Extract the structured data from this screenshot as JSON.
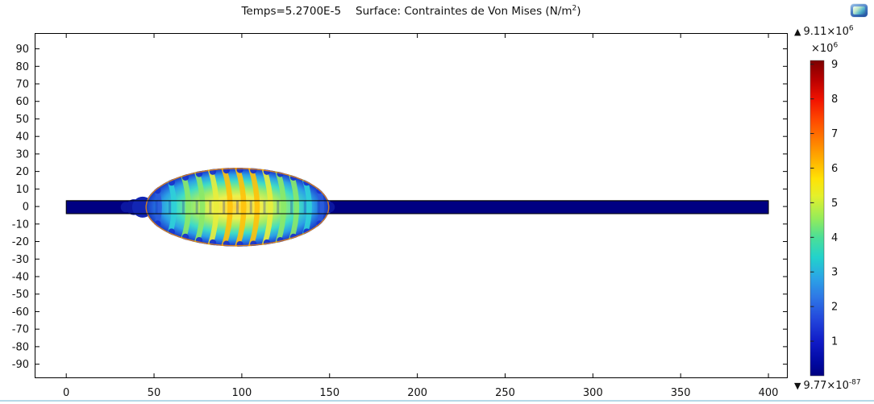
{
  "header": {
    "title": {
      "time": "Temps=5.2700E-5",
      "surface_prefix": "Surface: Contraintes de Von Mises (N/m",
      "surface_exponent": "2",
      "surface_suffix": ")"
    }
  },
  "icons": {
    "top_right": "plot-window-icon"
  },
  "chart_data": {
    "type": "heatmap",
    "title": "Temps=5.2700E-5   Surface: Contraintes de Von Mises (N/m²)",
    "xlabel": "",
    "ylabel": "",
    "xlim": [
      -18,
      411
    ],
    "ylim": [
      -98,
      99
    ],
    "x_ticks": [
      0,
      50,
      100,
      150,
      200,
      250,
      300,
      350,
      400
    ],
    "y_ticks": [
      90,
      80,
      70,
      60,
      50,
      40,
      30,
      20,
      10,
      0,
      -10,
      -20,
      -30,
      -40,
      -50,
      -60,
      -70,
      -80,
      -90
    ],
    "grid": false,
    "colorbar": {
      "position": "right",
      "max_marker": "▲",
      "min_marker": "▼",
      "max_prefix": "9.11×10",
      "max_exponent": "6",
      "multiplier_prefix": "×10",
      "multiplier_exponent": "6",
      "min_prefix": "9.77×10",
      "min_exponent": "-87",
      "vmax": 9.11,
      "ticks": [
        9,
        8,
        7,
        6,
        5,
        4,
        3,
        2,
        1
      ],
      "gradient": [
        [
          "0",
          "#7A0000"
        ],
        [
          "0.015",
          "#8C0000"
        ],
        [
          "0.06",
          "#B80000"
        ],
        [
          "0.125",
          "#F21300"
        ],
        [
          "0.19",
          "#FF4A00"
        ],
        [
          "0.25",
          "#FF7A00"
        ],
        [
          "0.31",
          "#FFAC00"
        ],
        [
          "0.375",
          "#FFE205"
        ],
        [
          "0.43",
          "#E4F02C"
        ],
        [
          "0.5",
          "#96EC59"
        ],
        [
          "0.56",
          "#4CDF97"
        ],
        [
          "0.625",
          "#22D2CC"
        ],
        [
          "0.69",
          "#2BA4E6"
        ],
        [
          "0.75",
          "#2E78E6"
        ],
        [
          "0.82",
          "#2347DC"
        ],
        [
          "0.89",
          "#111CC8"
        ],
        [
          "0.96",
          "#0008A0"
        ],
        [
          "1",
          "#000080"
        ]
      ]
    },
    "field": {
      "description": "Elastic wave packet (Von Mises stress) travelling along a thin horizontal plate",
      "beam": {
        "x_start": 0,
        "x_end": 400,
        "y_top": 3.3,
        "y_bottom": -4.1,
        "color": "#000082"
      },
      "packet": {
        "center_x": 97.5,
        "center_y": -0.35,
        "radius_x": 52.5,
        "radius_y": 22.5,
        "num_bands": 13,
        "band_colors": [
          "#FFC10A",
          "#E9ED3C",
          "#8BE968",
          "#2FD0D8",
          "#2B5CDC"
        ],
        "node_color": "#1733CE",
        "rim_color": "#FF8C00",
        "base_gradient": [
          [
            "0",
            "#FFD337"
          ],
          [
            "0.28",
            "#EEF04B"
          ],
          [
            "0.48",
            "#9BEC6B"
          ],
          [
            "0.66",
            "#3FDCC6"
          ],
          [
            "0.82",
            "#2BA0E6"
          ],
          [
            "0.93",
            "#2158D8"
          ],
          [
            "1",
            "#1735B8"
          ]
        ]
      },
      "ripples_left": [
        {
          "x": 34,
          "r": 3,
          "c": "#0C17A0"
        },
        {
          "x": 38.5,
          "r": 4.5,
          "c": "#0C17A0"
        },
        {
          "x": 43.5,
          "r": 6,
          "c": "#1226B4"
        }
      ],
      "ripples_right": [
        {
          "x": 141.5,
          "r": 8,
          "c": "#1C3BD8"
        },
        {
          "x": 146.5,
          "r": 5,
          "c": "#2E55E8"
        },
        {
          "x": 150,
          "r": 3,
          "c": "#0C17A0"
        }
      ]
    }
  }
}
